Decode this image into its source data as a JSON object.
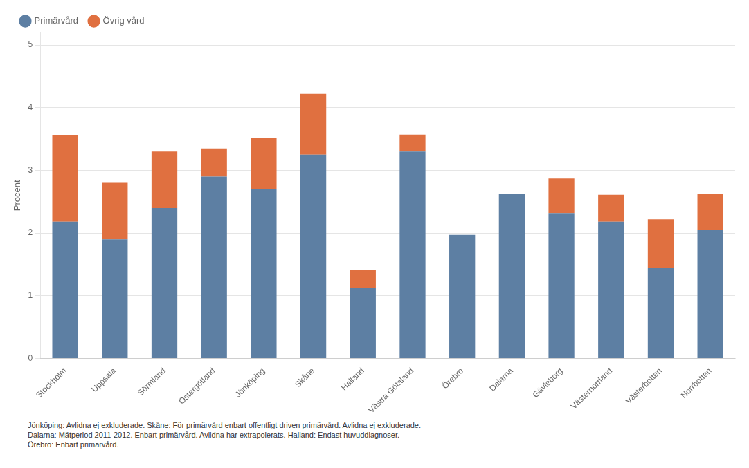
{
  "chart_data": {
    "type": "bar",
    "stacked": true,
    "ylabel": "Procent",
    "categories": [
      "Stockholm",
      "Uppsala",
      "Sörmland",
      "Östergötland",
      "Jönköping",
      "Skåne",
      "Halland",
      "Västra Götaland",
      "Örebro",
      "Dalarna",
      "Gävleborg",
      "Västernorrland",
      "Västerbotten",
      "Norrbotten"
    ],
    "series": [
      {
        "name": "Primärvård",
        "color": "#5d7fa3",
        "values": [
          2.18,
          1.9,
          2.4,
          2.9,
          2.7,
          3.25,
          1.13,
          3.3,
          1.97,
          2.62,
          2.32,
          2.18,
          1.45,
          2.05
        ]
      },
      {
        "name": "Övrig vård",
        "color": "#e07040",
        "values": [
          1.38,
          0.9,
          0.9,
          0.45,
          0.82,
          0.97,
          0.28,
          0.27,
          0.0,
          0.0,
          0.55,
          0.43,
          0.77,
          0.58
        ]
      }
    ],
    "ylim": [
      0,
      5.2
    ],
    "yticks": [
      0,
      1,
      2,
      3,
      4,
      5
    ],
    "grid": true,
    "legend": "top",
    "footnote": "Jönköping: Avlidna ej exkluderade.   Skåne: För primärvård enbart offentligt driven primärvård. Avlidna ej exkluderade.\nDalarna: Mätperiod 2011-2012. Enbart primärvård. Avlidna har extrapolerats.   Halland: Endast huvuddiagnoser.\nÖrebro: Enbart primärvård."
  }
}
